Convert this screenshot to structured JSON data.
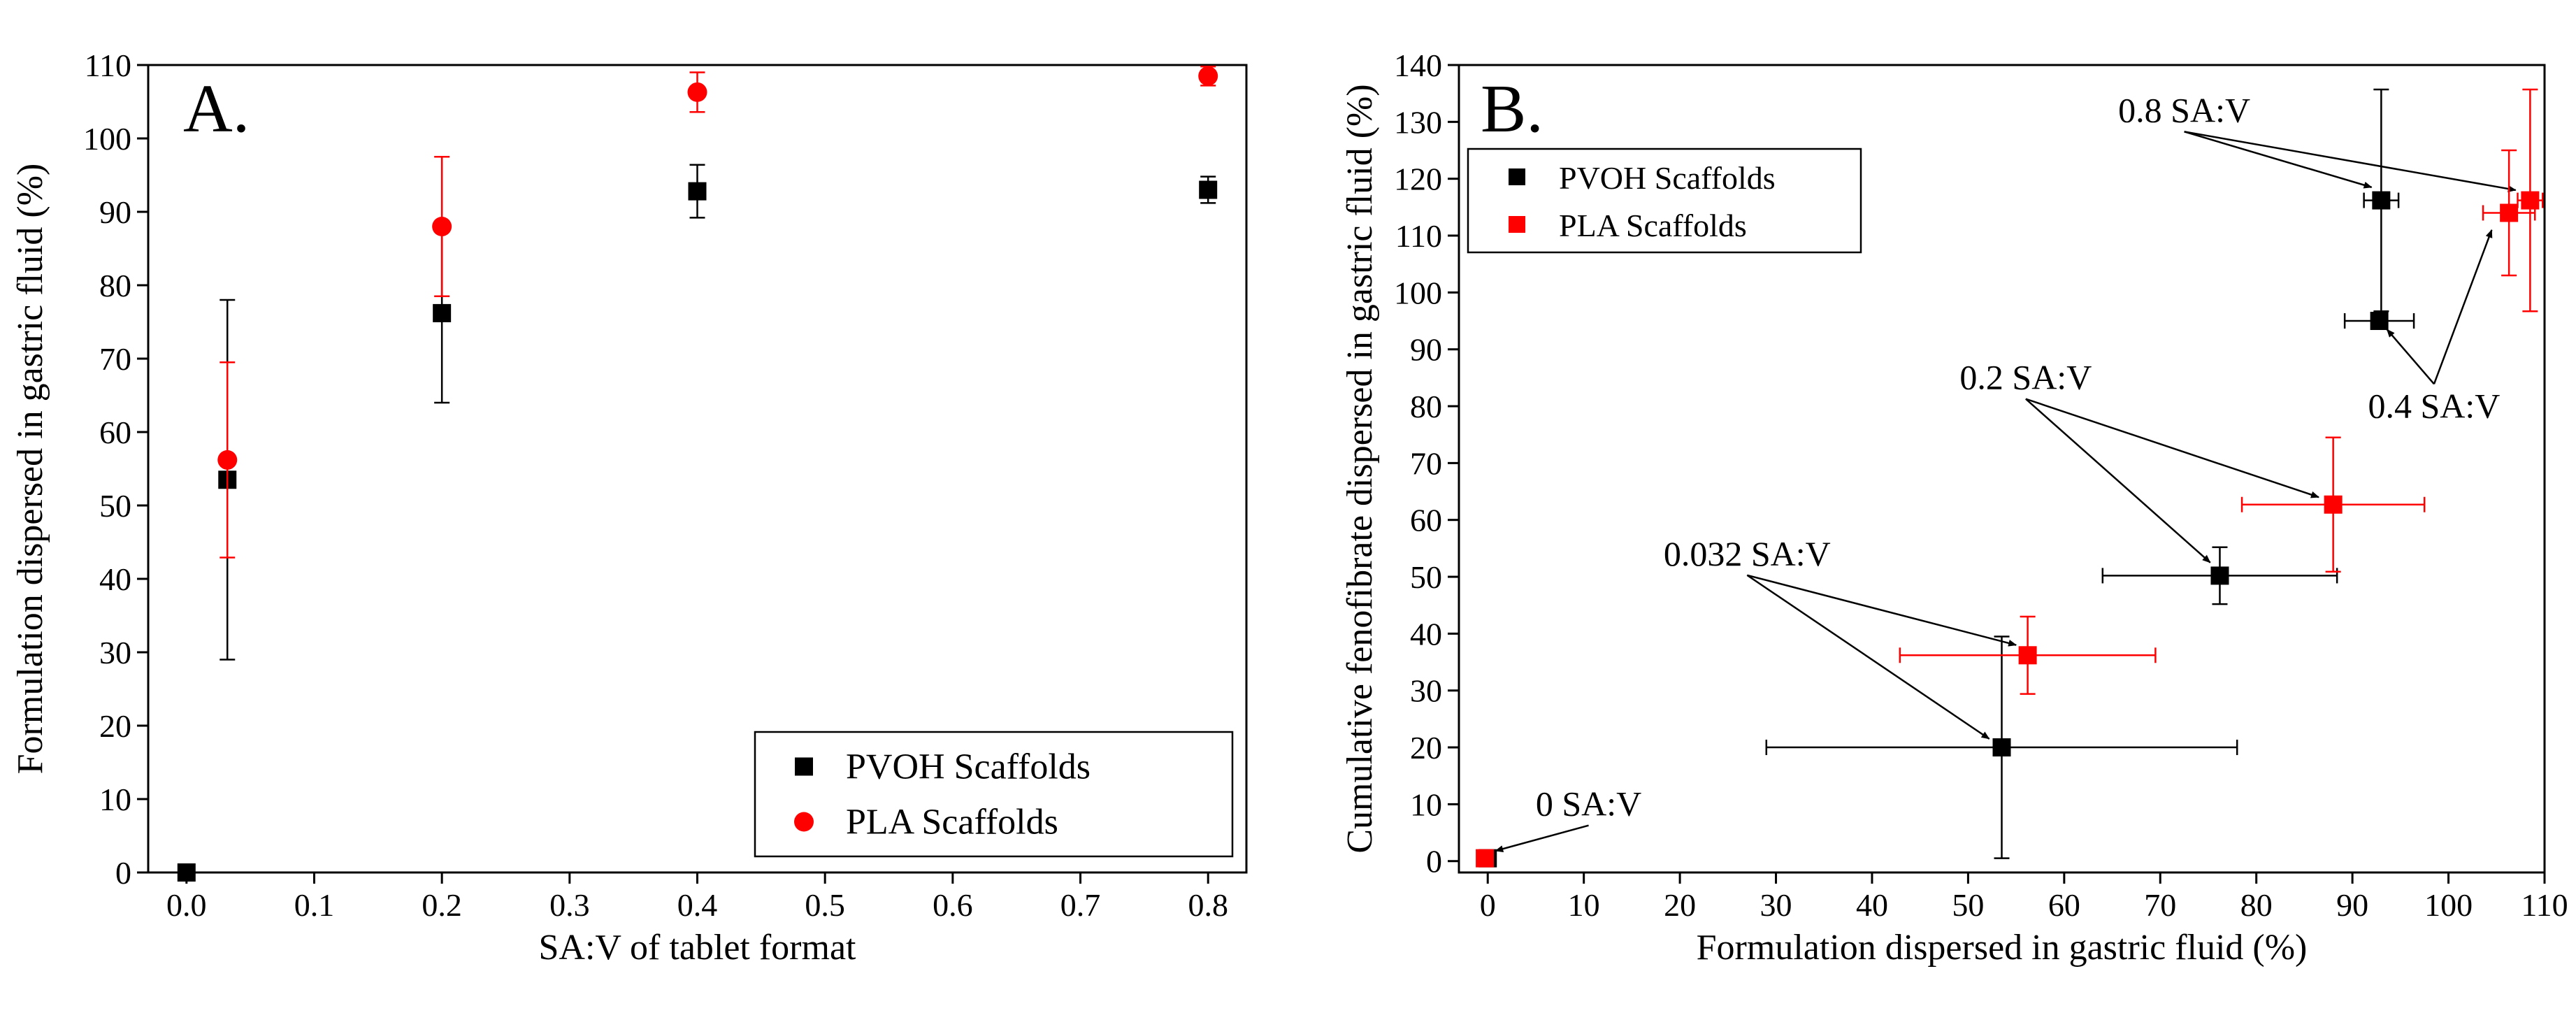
{
  "chart_data": [
    {
      "type": "scatter",
      "panel_label": "A.",
      "xlabel": "SA:V of tablet format",
      "ylabel": "Formulation dispersed in gastric fluid (%)",
      "xlim": [
        -0.03,
        0.83
      ],
      "ylim": [
        0,
        110
      ],
      "xticks": [
        0.0,
        0.1,
        0.2,
        0.3,
        0.4,
        0.5,
        0.6,
        0.7,
        0.8
      ],
      "xtick_labels": [
        "0.0",
        "0.1",
        "0.2",
        "0.3",
        "0.4",
        "0.5",
        "0.6",
        "0.7",
        "0.8"
      ],
      "yticks": [
        0,
        10,
        20,
        30,
        40,
        50,
        60,
        70,
        80,
        90,
        100,
        110
      ],
      "ytick_labels": [
        "0",
        "10",
        "20",
        "30",
        "40",
        "50",
        "60",
        "70",
        "80",
        "90",
        "100",
        "110"
      ],
      "legend_position": "bottom-right",
      "series": [
        {
          "name": "PVOH Scaffolds",
          "legend_label": "PVOH Scaffolds",
          "color": "#000000",
          "marker": "square",
          "points": [
            {
              "x": 0.0,
              "y": 0,
              "yerr": 0
            },
            {
              "x": 0.032,
              "y": 53.5,
              "yerr": 24.5
            },
            {
              "x": 0.2,
              "y": 76.2,
              "yerr": 12.2
            },
            {
              "x": 0.4,
              "y": 92.8,
              "yerr": 3.6
            },
            {
              "x": 0.8,
              "y": 93.0,
              "yerr": 1.8
            }
          ]
        },
        {
          "name": "PLA Scaffolds",
          "legend_label": "PLA Scaffolds",
          "color": "#ff0000",
          "marker": "circle",
          "points": [
            {
              "x": 0.032,
              "y": 56.2,
              "yerr": 13.3
            },
            {
              "x": 0.2,
              "y": 88.0,
              "yerr": 9.5
            },
            {
              "x": 0.4,
              "y": 106.3,
              "yerr": 2.7
            },
            {
              "x": 0.8,
              "y": 108.5,
              "yerr": 1.3
            }
          ]
        }
      ]
    },
    {
      "type": "scatter",
      "panel_label": "B.",
      "xlabel": "Formulation dispersed in gastric fluid (%)",
      "ylabel": "Cumulative fenofibrate dispersed in gastric fluid (%)",
      "xlim": [
        -3,
        110
      ],
      "ylim": [
        -2,
        140
      ],
      "xticks": [
        0,
        10,
        20,
        30,
        40,
        50,
        60,
        70,
        80,
        90,
        100,
        110
      ],
      "xtick_labels": [
        "0",
        "10",
        "20",
        "30",
        "40",
        "50",
        "60",
        "70",
        "80",
        "90",
        "100",
        "110"
      ],
      "yticks": [
        0,
        10,
        20,
        30,
        40,
        50,
        60,
        70,
        80,
        90,
        100,
        110,
        120,
        130,
        140
      ],
      "ytick_labels": [
        "0",
        "10",
        "20",
        "30",
        "40",
        "50",
        "60",
        "70",
        "80",
        "90",
        "100",
        "110",
        "120",
        "130",
        "140"
      ],
      "legend_position": "top-left",
      "series": [
        {
          "name": "PVOH Scaffolds",
          "legend_label": "PVOH Scaffolds",
          "color": "#000000",
          "marker": "square",
          "points": [
            {
              "x": 0,
              "y": 0.5,
              "xerr": 0,
              "yerr": 0
            },
            {
              "x": 53.5,
              "y": 20.0,
              "xerr": 24.5,
              "yerr": 19.5
            },
            {
              "x": 76.2,
              "y": 50.2,
              "xerr": 12.2,
              "yerr": 5.0
            },
            {
              "x": 92.8,
              "y": 95.0,
              "xerr": 3.6,
              "yerr": 1.0
            },
            {
              "x": 93.0,
              "y": 116.2,
              "xerr": 1.8,
              "yerr": 19.5
            }
          ]
        },
        {
          "name": "PLA Scaffolds",
          "legend_label": "PLA Scaffolds",
          "color": "#ff0000",
          "marker": "square",
          "points": [
            {
              "x": -0.3,
              "y": 0.5,
              "xerr": 0,
              "yerr": 0
            },
            {
              "x": 56.2,
              "y": 36.2,
              "xerr": 13.3,
              "yerr": 6.8
            },
            {
              "x": 88.0,
              "y": 62.7,
              "xerr": 9.5,
              "yerr": 11.8
            },
            {
              "x": 106.3,
              "y": 114.0,
              "xerr": 2.7,
              "yerr": 11.0
            },
            {
              "x": 108.5,
              "y": 116.2,
              "xerr": 1.3,
              "yerr": 19.5
            }
          ]
        }
      ],
      "annotations": [
        {
          "text": "0.8 SA:V",
          "text_at": [
            72.5,
            130
          ],
          "arrows_to": [
            [
              92.0,
              118.5
            ],
            [
              107.0,
              118.0
            ]
          ]
        },
        {
          "text": "0.4 SA:V",
          "text_at": [
            98.5,
            78
          ],
          "arrows_to": [
            [
              93.6,
              93.5
            ],
            [
              104.5,
              111.0
            ]
          ]
        },
        {
          "text": "0.2 SA:V",
          "text_at": [
            56,
            83
          ],
          "arrows_to": [
            [
              75.2,
              52.5
            ],
            [
              86.5,
              64.0
            ]
          ]
        },
        {
          "text": "0.032 SA:V",
          "text_at": [
            27,
            52
          ],
          "arrows_to": [
            [
              55.0,
              38.0
            ],
            [
              52.2,
              21.5
            ]
          ]
        },
        {
          "text": "0 SA:V",
          "text_at": [
            10.5,
            8
          ],
          "arrows_to": [
            [
              0.8,
              1.8
            ]
          ]
        }
      ]
    }
  ]
}
